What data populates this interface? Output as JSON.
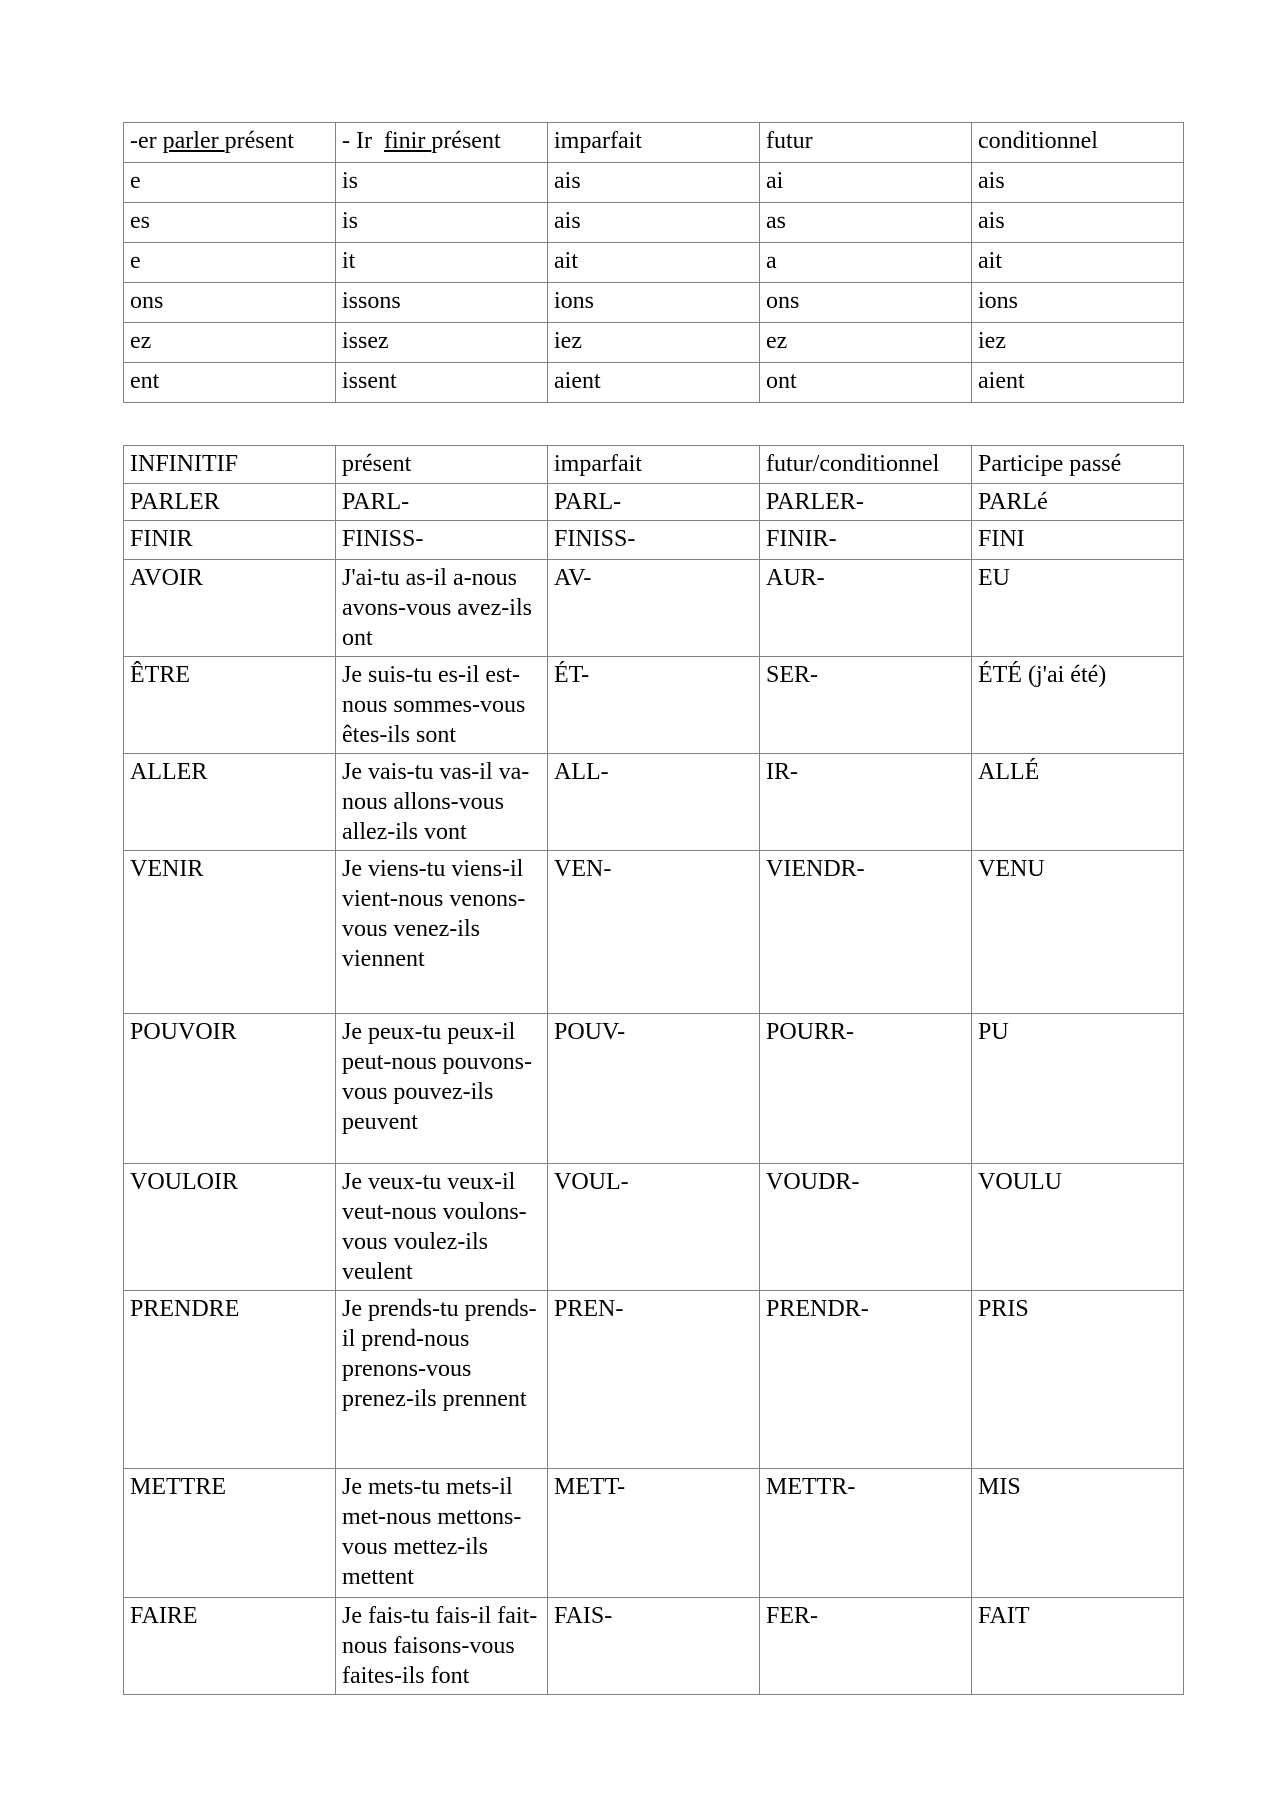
{
  "colors": {
    "page_background": "#ffffff",
    "table_border": "#808080",
    "text": "#000000"
  },
  "t1": {
    "headers": [
      {
        "pre": "-er ",
        "u": "parler ",
        "post": "présent"
      },
      {
        "pre": "- Ir  ",
        "u": "finir ",
        "post": "présent"
      },
      {
        "pre": "",
        "u": "",
        "post": "imparfait"
      },
      {
        "pre": "",
        "u": "",
        "post": "futur"
      },
      {
        "pre": "",
        "u": "",
        "post": "conditionnel"
      }
    ],
    "rows": [
      [
        "e",
        "is",
        "ais",
        "ai",
        "ais"
      ],
      [
        "es",
        "is",
        "ais",
        "as",
        "ais"
      ],
      [
        "e",
        "it",
        "ait",
        "a",
        "ait"
      ],
      [
        "ons",
        "issons",
        "ions",
        "ons",
        "ions"
      ],
      [
        "ez",
        "issez",
        "iez",
        "ez",
        "iez"
      ],
      [
        "ent",
        "issent",
        "aient",
        "ont",
        "aient"
      ]
    ]
  },
  "t2": {
    "headers": [
      "INFINITIF",
      "présent",
      "imparfait",
      "futur/conditionnel",
      "Participe passé"
    ],
    "rows": [
      [
        "PARLER",
        "PARL-",
        "PARL-",
        "PARLER-",
        "PARLé"
      ],
      [
        "FINIR",
        "FINISS-",
        "FINISS-",
        "FINIR-",
        "FINI"
      ],
      [
        "AVOIR",
        "J'ai-tu as-il a-nous avons-vous avez-ils ont",
        "AV-",
        "AUR-",
        "EU"
      ],
      [
        "ÊTRE",
        "Je suis-tu es-il est-nous sommes-vous êtes-ils sont",
        "ÉT-",
        "SER-",
        "ÉTÉ (j'ai été)"
      ],
      [
        "ALLER",
        "Je vais-tu vas-il va-nous allons-vous allez-ils vont",
        "ALL-",
        "IR-",
        "ALLÉ"
      ],
      [
        "VENIR",
        "Je viens-tu viens-il vient-nous venons-vous venez-ils viennent",
        "VEN-",
        "VIENDR-",
        "VENU"
      ],
      [
        "POUVOIR",
        "Je peux-tu peux-il peut-nous pouvons-vous pouvez-ils peuvent",
        "POUV-",
        "POURR-",
        "PU"
      ],
      [
        "VOULOIR",
        "Je veux-tu veux-il veut-nous voulons-vous voulez-ils veulent",
        "VOUL-",
        "VOUDR-",
        "VOULU"
      ],
      [
        "PRENDRE",
        "Je prends-tu prends- il prend-nous prenons-vous prenez-ils prennent",
        "PREN-",
        "PRENDR-",
        "PRIS"
      ],
      [
        "METTRE",
        "Je mets-tu mets-il met-nous mettons-vous mettez-ils mettent",
        "METT-",
        "METTR-",
        "MIS"
      ],
      [
        "FAIRE",
        "Je fais-tu fais-il fait- nous faisons-vous faites-ils font",
        "FAIS-",
        "FER-",
        "FAIT"
      ]
    ]
  }
}
